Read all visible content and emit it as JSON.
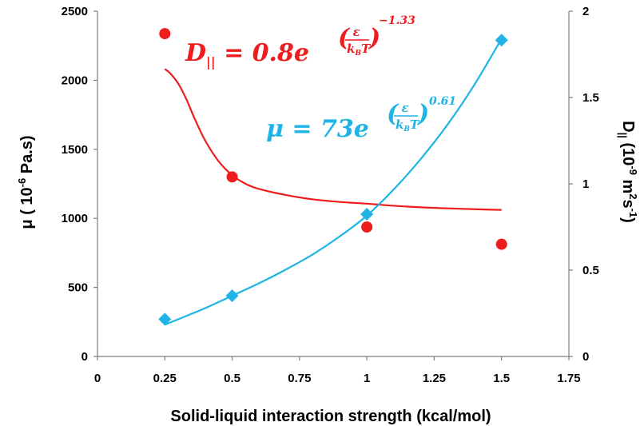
{
  "chart_data": {
    "type": "scatter",
    "xlabel": "Solid-liquid interaction strength (kcal/mol)",
    "ylabel_left": {
      "base": "μ ( 10",
      "exp": "-6",
      "unit": " Pa.s)"
    },
    "ylabel_right": {
      "base": "D",
      "sub": "||",
      "mid1": " (10",
      "exp1": "-9",
      "mid2": " m",
      "exp2": "2",
      "mid3": "s",
      "exp3": "-1",
      "end": ")"
    },
    "xlim": [
      0,
      1.75
    ],
    "ylim_left": [
      0,
      2500
    ],
    "ylim_right": [
      0,
      2
    ],
    "x_ticks": [
      "0",
      "0.25",
      "0.5",
      "0.75",
      "1",
      "1.25",
      "1.5",
      "1.75"
    ],
    "y_left_ticks": [
      "0",
      "500",
      "1000",
      "1500",
      "2000",
      "2500"
    ],
    "y_right_ticks": [
      "0",
      "0.5",
      "1",
      "1.5",
      "2"
    ],
    "series": [
      {
        "axis": "right",
        "color": "#ee1c1c",
        "marker": "circle",
        "x": [
          0.25,
          0.5,
          1.0,
          1.5
        ],
        "y": [
          1.87,
          1.04,
          0.75,
          0.65
        ],
        "fit_x": [
          0.25,
          0.27,
          0.3,
          0.33,
          0.36,
          0.4,
          0.45,
          0.5,
          0.55,
          0.6,
          0.7,
          0.8,
          0.9,
          1.0,
          1.1,
          1.2,
          1.3,
          1.4,
          1.5
        ],
        "fit_y": [
          1.665,
          1.64,
          1.58,
          1.49,
          1.38,
          1.25,
          1.13,
          1.05,
          1.0,
          0.97,
          0.935,
          0.91,
          0.895,
          0.885,
          0.873,
          0.864,
          0.858,
          0.853,
          0.849
        ],
        "equation": {
          "lhs": "D",
          "sub": "||",
          "rhs": " = 0.8e",
          "frac_num": "ε",
          "frac_den": "k",
          "den_sub": "B",
          "den_tail": "T",
          "exponent": "−1.33"
        }
      },
      {
        "axis": "left",
        "color": "#1eb4e6",
        "marker": "diamond",
        "x": [
          0.25,
          0.5,
          1.0,
          1.5
        ],
        "y": [
          270,
          440,
          1030,
          2290
        ],
        "fit_x": [
          0.25,
          0.3,
          0.4,
          0.5,
          0.6,
          0.7,
          0.8,
          0.9,
          1.0,
          1.1,
          1.2,
          1.3,
          1.4,
          1.5
        ],
        "fit_y": [
          230,
          270,
          350,
          440,
          530,
          630,
          740,
          870,
          1020,
          1210,
          1430,
          1680,
          1970,
          2300
        ],
        "equation": {
          "lhs": "μ",
          "rhs": " = 73e",
          "frac_num": "ε",
          "frac_den": "k",
          "den_sub": "B",
          "den_tail": "T",
          "exponent": "0.61"
        }
      }
    ]
  }
}
